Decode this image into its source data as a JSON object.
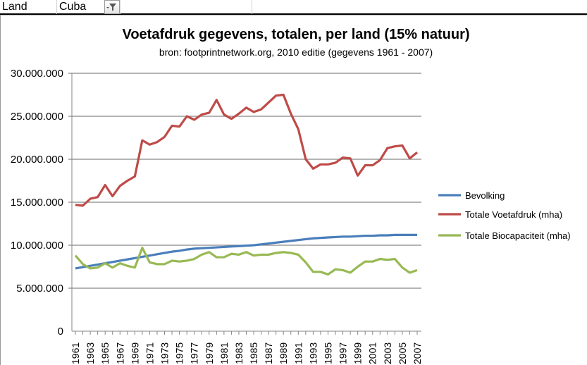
{
  "sheet": {
    "filter_label": "Land",
    "filter_value": "Cuba",
    "filter_icon": "filter-dropdown-icon"
  },
  "chart_data": {
    "type": "line",
    "title": "Voetafdruk gegevens, totalen, per land (15% natuur)",
    "subtitle": "bron: footprintnetwork.org, 2010 editie (gegevens 1961 - 2007)",
    "xlabel": "",
    "ylabel": "",
    "ylim": [
      0,
      30000000
    ],
    "yticks": [
      "0",
      "5.000.000",
      "10.000.000",
      "15.000.000",
      "20.000.000",
      "25.000.000",
      "30.000.000"
    ],
    "grid": true,
    "legend": "right",
    "x": [
      1961,
      1962,
      1963,
      1964,
      1965,
      1966,
      1967,
      1968,
      1969,
      1970,
      1971,
      1972,
      1973,
      1974,
      1975,
      1976,
      1977,
      1978,
      1979,
      1980,
      1981,
      1982,
      1983,
      1984,
      1985,
      1986,
      1987,
      1988,
      1989,
      1990,
      1991,
      1992,
      1993,
      1994,
      1995,
      1996,
      1997,
      1998,
      1999,
      2000,
      2001,
      2002,
      2003,
      2004,
      2005,
      2006,
      2007
    ],
    "series": [
      {
        "name": "Bevolking",
        "color": "#4a7ebb",
        "values": [
          7300000,
          7450000,
          7600000,
          7750000,
          7900000,
          8050000,
          8200000,
          8350000,
          8500000,
          8650000,
          8800000,
          8950000,
          9100000,
          9250000,
          9350000,
          9500000,
          9600000,
          9650000,
          9700000,
          9750000,
          9800000,
          9850000,
          9900000,
          9950000,
          10000000,
          10100000,
          10200000,
          10300000,
          10400000,
          10500000,
          10600000,
          10700000,
          10800000,
          10850000,
          10900000,
          10950000,
          11000000,
          11000000,
          11050000,
          11100000,
          11100000,
          11150000,
          11150000,
          11200000,
          11200000,
          11200000,
          11200000
        ]
      },
      {
        "name": "Totale Voetafdruk (mha)",
        "color": "#be4b48",
        "values": [
          14700000,
          14600000,
          15400000,
          15600000,
          17000000,
          15700000,
          16900000,
          17500000,
          18000000,
          22200000,
          21700000,
          22000000,
          22600000,
          23900000,
          23800000,
          25000000,
          24600000,
          25200000,
          25400000,
          26900000,
          25200000,
          24700000,
          25300000,
          26000000,
          25500000,
          25800000,
          26600000,
          27400000,
          27500000,
          25300000,
          23500000,
          20000000,
          18900000,
          19400000,
          19400000,
          19600000,
          20200000,
          20100000,
          18100000,
          19300000,
          19300000,
          19900000,
          21300000,
          21500000,
          21600000,
          20100000,
          20800000
        ]
      },
      {
        "name": "Totale Biocapaciteit (mha)",
        "color": "#98b954",
        "values": [
          8800000,
          7800000,
          7300000,
          7400000,
          7900000,
          7400000,
          7900000,
          7600000,
          7400000,
          9700000,
          8000000,
          7800000,
          7800000,
          8200000,
          8100000,
          8200000,
          8400000,
          8900000,
          9200000,
          8600000,
          8600000,
          9000000,
          8900000,
          9200000,
          8800000,
          8900000,
          8900000,
          9100000,
          9200000,
          9100000,
          8900000,
          8000000,
          6900000,
          6900000,
          6600000,
          7200000,
          7100000,
          6800000,
          7500000,
          8100000,
          8100000,
          8400000,
          8300000,
          8400000,
          7400000,
          6800000,
          7100000
        ]
      }
    ]
  }
}
